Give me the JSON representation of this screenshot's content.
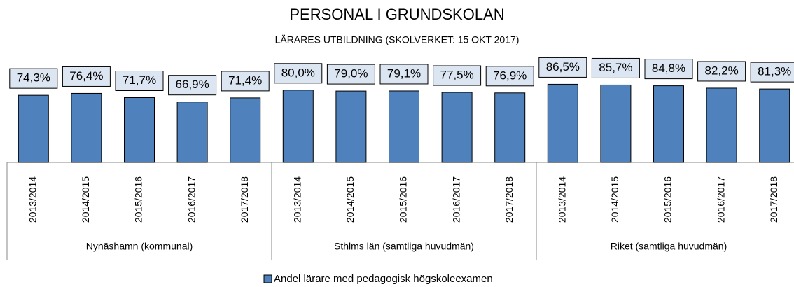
{
  "chart_data": {
    "type": "bar",
    "title": "PERSONAL I GRUNDSKOLAN",
    "subtitle": "LÄRARES UTBILDNING (SKOLVERKET: 15 OKT 2017)",
    "groups": [
      {
        "name": "Nynäshamn (kommunal)",
        "categories": [
          "2013/2014",
          "2014/2015",
          "2015/2016",
          "2016/2017",
          "2017/2018"
        ]
      },
      {
        "name": "Sthlms län (samtliga huvudmän)",
        "categories": [
          "2013/2014",
          "2014/2015",
          "2015/2016",
          "2016/2017",
          "2017/2018"
        ]
      },
      {
        "name": "Riket (samtliga huvudmän)",
        "categories": [
          "2013/2014",
          "2014/2015",
          "2015/2016",
          "2016/2017",
          "2017/2018"
        ]
      }
    ],
    "series": [
      {
        "name": "Andel lärare med pedagogisk högskoleexamen",
        "color": "#4f81bd",
        "values": [
          74.3,
          76.4,
          71.7,
          66.9,
          71.4,
          80.0,
          79.0,
          79.1,
          77.5,
          76.9,
          86.5,
          85.7,
          84.8,
          82.2,
          81.3
        ],
        "value_labels": [
          "74,3%",
          "76,4%",
          "71,7%",
          "66,9%",
          "71,4%",
          "80,0%",
          "79,0%",
          "79,1%",
          "77,5%",
          "76,9%",
          "86,5%",
          "85,7%",
          "84,8%",
          "82,2%",
          "81,3%"
        ]
      }
    ],
    "legend": "bottom"
  }
}
